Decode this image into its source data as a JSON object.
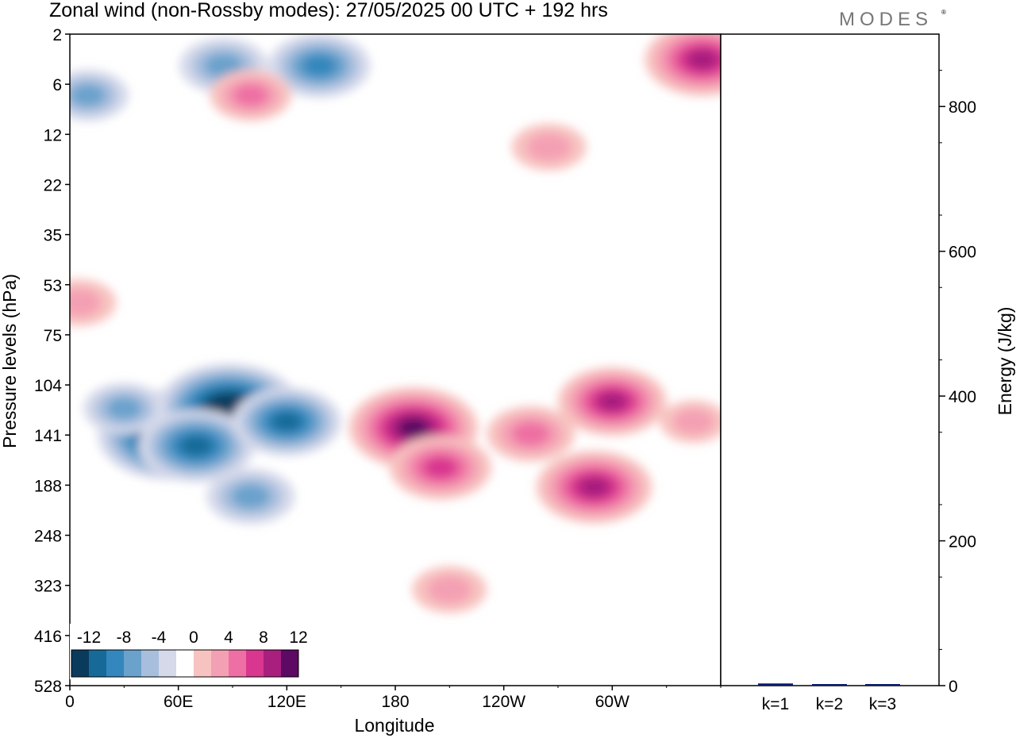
{
  "title": "Zonal wind (non-Rossby modes):  27/05/2025  00 UTC  + 192 hrs",
  "logo": "MODES",
  "chart_data": [
    {
      "type": "heatmap",
      "xlabel": "Longitude",
      "ylabel": "Pressure levels (hPa)",
      "x_ticks": [
        "0",
        "60E",
        "120E",
        "180",
        "120W",
        "60W"
      ],
      "y_ticks": [
        "2",
        "6",
        "12",
        "22",
        "35",
        "53",
        "75",
        "104",
        "141",
        "188",
        "248",
        "323",
        "416",
        "528"
      ],
      "colorbar": {
        "labels": [
          "-12",
          "-8",
          "-4",
          "0",
          "4",
          "8",
          "12"
        ],
        "colors": [
          "#0b3b5c",
          "#176a98",
          "#3387bd",
          "#6aa2cc",
          "#a7bedd",
          "#d5d9ea",
          "#ffffff",
          "#f7c3c0",
          "#f4a0b4",
          "#ee6fa3",
          "#d9368f",
          "#a81f7e",
          "#5c0a63"
        ]
      },
      "blobs": [
        {
          "lon": 55,
          "lev": 141,
          "value": -14
        },
        {
          "lon": 88,
          "lev": 120,
          "value": -14
        },
        {
          "lon": 70,
          "lev": 150,
          "value": -10
        },
        {
          "lon": 120,
          "lev": 130,
          "value": -9
        },
        {
          "lon": 100,
          "lev": 200,
          "value": -6
        },
        {
          "lon": 30,
          "lev": 120,
          "value": -5
        },
        {
          "lon": 138,
          "lev": 4,
          "value": -8
        },
        {
          "lon": 85,
          "lev": 4,
          "value": -6
        },
        {
          "lon": 10,
          "lev": 7,
          "value": -5
        },
        {
          "lon": 190,
          "lev": 135,
          "value": 12
        },
        {
          "lon": 205,
          "lev": 170,
          "value": 8
        },
        {
          "lon": 290,
          "lev": 190,
          "value": 10
        },
        {
          "lon": 300,
          "lev": 115,
          "value": 9
        },
        {
          "lon": 255,
          "lev": 140,
          "value": 6
        },
        {
          "lon": 210,
          "lev": 330,
          "value": 4
        },
        {
          "lon": 350,
          "lev": 3.5,
          "value": 10
        },
        {
          "lon": 265,
          "lev": 14,
          "value": 4
        },
        {
          "lon": 100,
          "lev": 7,
          "value": 5
        },
        {
          "lon": 5,
          "lev": 60,
          "value": 4
        },
        {
          "lon": 345,
          "lev": 130,
          "value": 3
        }
      ]
    },
    {
      "type": "bar",
      "ylabel": "Energy (J/kg)",
      "ylim": [
        0,
        900
      ],
      "y_ticks": [
        0,
        200,
        400,
        600,
        800
      ],
      "categories": [
        "k=1",
        "k=2",
        "k=3"
      ],
      "values": [
        3,
        1,
        1
      ],
      "color": "#0a1a6e"
    }
  ]
}
